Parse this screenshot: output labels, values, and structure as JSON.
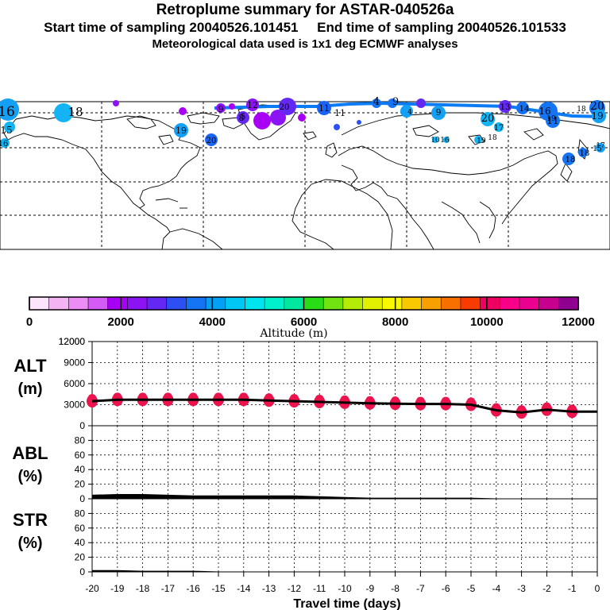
{
  "header": {
    "title": "Retroplume summary for ASTAR-040526a",
    "start_label": "Start time of sampling 20040526.101451",
    "end_label": "End time of sampling 20040526.101533",
    "met_line": "Meteorological data used is 1x1 deg ECMWF analyses"
  },
  "map": {
    "labels": [
      "16",
      "18",
      "15",
      "16",
      "19",
      "20",
      "9",
      "8",
      "5",
      "12",
      "20",
      "11",
      "11",
      "4",
      "9",
      "9",
      "20",
      "13",
      "14",
      "17",
      "18",
      "19",
      "16",
      "10",
      "18",
      "15",
      "18",
      "19",
      "20",
      "11",
      "16",
      "17",
      "18",
      "19",
      "4"
    ]
  },
  "colorbar": {
    "title": "Altitude (m)",
    "tick_labels": [
      "0",
      "2000",
      "4000",
      "6000",
      "8000",
      "10000",
      "12000"
    ],
    "colors": [
      "#fce4fc",
      "#f4b4f4",
      "#ec8cf4",
      "#d45cf4",
      "#a800f4",
      "#8c14f4",
      "#6428f4",
      "#2c50f4",
      "#1474f4",
      "#04a0f4",
      "#00c8f4",
      "#00e4f0",
      "#00f0cc",
      "#00e8a0",
      "#28dc18",
      "#70e410",
      "#b4ec08",
      "#e0f000",
      "#f8f800",
      "#f8c800",
      "#f8a000",
      "#f87000",
      "#f83c00",
      "#f00060",
      "#f80088",
      "#ec0090",
      "#c80090",
      "#900090"
    ]
  },
  "colors": {
    "marker_alt": "#ec144c",
    "line": "#000000",
    "grid": "#000000"
  },
  "chart_data": [
    {
      "type": "line",
      "name": "ALT",
      "ylabel_top": "ALT",
      "ylabel_bottom": "(m)",
      "ylim": [
        0,
        12000
      ],
      "yticks": [
        0,
        3000,
        6000,
        9000,
        12000
      ],
      "ytick_labels": [
        "0",
        "3000",
        "6000",
        "9000",
        "12000"
      ],
      "x": [
        -20,
        -19,
        -18,
        -17,
        -16,
        -15,
        -14,
        -13,
        -12,
        -11,
        -10,
        -9,
        -8,
        -7,
        -6,
        -5,
        -4,
        -3,
        -2,
        -1,
        0
      ],
      "y": [
        3500,
        3700,
        3700,
        3700,
        3700,
        3700,
        3700,
        3600,
        3500,
        3400,
        3300,
        3200,
        3150,
        3100,
        3100,
        3000,
        2200,
        1900,
        2300,
        2000,
        2000
      ],
      "markers": {
        "x": [
          -20,
          -19,
          -18,
          -17,
          -16,
          -15,
          -14,
          -13,
          -12,
          -11,
          -10,
          -9,
          -8,
          -7,
          -6,
          -5,
          -4,
          -3,
          -2,
          -1
        ],
        "y": [
          3500,
          3700,
          3700,
          3700,
          3700,
          3700,
          3700,
          3600,
          3500,
          3400,
          3300,
          3200,
          3150,
          3100,
          3100,
          3000,
          2200,
          1900,
          2300,
          2000
        ]
      }
    },
    {
      "type": "area",
      "name": "ABL",
      "ylabel_top": "ABL",
      "ylabel_bottom": "(%)",
      "ylim": [
        0,
        100
      ],
      "yticks": [
        0,
        20,
        40,
        60,
        80
      ],
      "ytick_labels": [
        "0",
        "20",
        "40",
        "60",
        "80"
      ],
      "x": [
        -20,
        -19,
        -18,
        -17,
        -16,
        -15,
        -14,
        -13,
        -12,
        -11,
        -10,
        -9,
        -8,
        -7,
        -6,
        -5,
        -4,
        -3,
        -2,
        -1,
        0
      ],
      "y": [
        5,
        6,
        6,
        5,
        4,
        4,
        4,
        4,
        4,
        3,
        2,
        1,
        1,
        1,
        1,
        1,
        0,
        0,
        0,
        0,
        0
      ]
    },
    {
      "type": "area",
      "name": "STR",
      "ylabel_top": "STR",
      "ylabel_bottom": "(%)",
      "ylim": [
        0,
        100
      ],
      "yticks": [
        0,
        20,
        40,
        60,
        80
      ],
      "ytick_labels": [
        "0",
        "20",
        "40",
        "60",
        "80"
      ],
      "x": [
        -20,
        -19,
        -18,
        -17,
        -16,
        -15,
        -14,
        -13,
        -12,
        -11,
        -10,
        -9,
        -8,
        -7,
        -6,
        -5,
        -4,
        -3,
        -2,
        -1,
        0
      ],
      "y": [
        2,
        2,
        1,
        1,
        1,
        0,
        0,
        0,
        0,
        0,
        0,
        0,
        0,
        0,
        0,
        0,
        0,
        0,
        0,
        0,
        0
      ]
    }
  ],
  "x_axis": {
    "xlabel": "Travel time (days)",
    "xlim": [
      -20,
      0
    ],
    "tick_labels": [
      "-20",
      "-19",
      "-18",
      "-17",
      "-16",
      "-15",
      "-14",
      "-13",
      "-12",
      "-11",
      "-10",
      "-9",
      "-8",
      "-7",
      "-6",
      "-5",
      "-4",
      "-3",
      "-2",
      "-1",
      "0"
    ]
  }
}
